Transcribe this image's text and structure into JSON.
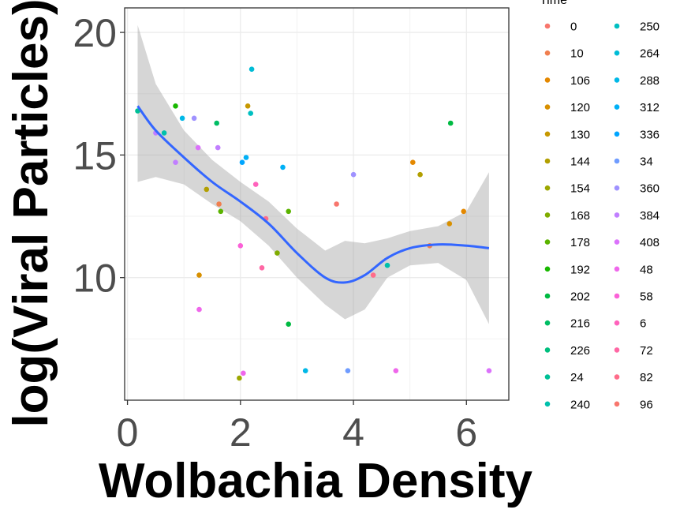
{
  "chart_data": {
    "type": "scatter",
    "xlabel": "Wolbachia Density",
    "ylabel": "log(Viral Particles)",
    "xlim": [
      -0.05,
      6.75
    ],
    "ylim": [
      5.0,
      21.0
    ],
    "x_ticks": [
      0,
      2,
      4,
      6
    ],
    "y_ticks": [
      10,
      15,
      20
    ],
    "grid": true,
    "legend": {
      "title": "Time",
      "position": "right",
      "entries": [
        {
          "label": "0",
          "color": "#F8766D"
        },
        {
          "label": "10",
          "color": "#F07F4F"
        },
        {
          "label": "106",
          "color": "#E48800"
        },
        {
          "label": "120",
          "color": "#D89000"
        },
        {
          "label": "130",
          "color": "#C79800"
        },
        {
          "label": "144",
          "color": "#B29F00"
        },
        {
          "label": "154",
          "color": "#9CA700"
        },
        {
          "label": "168",
          "color": "#80AC00"
        },
        {
          "label": "178",
          "color": "#5BB300"
        },
        {
          "label": "192",
          "color": "#18B800"
        },
        {
          "label": "202",
          "color": "#00BA42"
        },
        {
          "label": "216",
          "color": "#00BD64"
        },
        {
          "label": "226",
          "color": "#00BF7E"
        },
        {
          "label": "24",
          "color": "#00C096"
        },
        {
          "label": "240",
          "color": "#00C0AC"
        },
        {
          "label": "250",
          "color": "#00BFC1"
        },
        {
          "label": "264",
          "color": "#00BCD6"
        },
        {
          "label": "288",
          "color": "#00B8E7"
        },
        {
          "label": "312",
          "color": "#00B0F6"
        },
        {
          "label": "336",
          "color": "#00A5FF"
        },
        {
          "label": "34",
          "color": "#6F9CFF"
        },
        {
          "label": "360",
          "color": "#9F92FF"
        },
        {
          "label": "384",
          "color": "#C17FFF"
        },
        {
          "label": "408",
          "color": "#DB72FB"
        },
        {
          "label": "48",
          "color": "#EF67EB"
        },
        {
          "label": "58",
          "color": "#FB61D7"
        },
        {
          "label": "6",
          "color": "#FF62BC"
        },
        {
          "label": "72",
          "color": "#FF67A4"
        },
        {
          "label": "82",
          "color": "#FF6C8A"
        },
        {
          "label": "96",
          "color": "#F8766D"
        }
      ]
    },
    "points": [
      {
        "x": 0.18,
        "y": 16.8,
        "color": "#00C096"
      },
      {
        "x": 0.5,
        "y": 15.9,
        "color": "#C17FFF"
      },
      {
        "x": 0.65,
        "y": 15.9,
        "color": "#00C0AC"
      },
      {
        "x": 0.85,
        "y": 17.0,
        "color": "#18B800"
      },
      {
        "x": 0.85,
        "y": 14.7,
        "color": "#C17FFF"
      },
      {
        "x": 0.97,
        "y": 16.5,
        "color": "#00B8E7"
      },
      {
        "x": 1.18,
        "y": 16.5,
        "color": "#9F92FF"
      },
      {
        "x": 1.25,
        "y": 15.3,
        "color": "#DB72FB"
      },
      {
        "x": 1.27,
        "y": 10.1,
        "color": "#D89000"
      },
      {
        "x": 1.27,
        "y": 8.7,
        "color": "#EF67EB"
      },
      {
        "x": 1.4,
        "y": 13.6,
        "color": "#B29F00"
      },
      {
        "x": 1.58,
        "y": 16.3,
        "color": "#00BD64"
      },
      {
        "x": 1.6,
        "y": 15.3,
        "color": "#C17FFF"
      },
      {
        "x": 1.62,
        "y": 13.0,
        "color": "#F07F4F"
      },
      {
        "x": 1.65,
        "y": 12.7,
        "color": "#5BB300"
      },
      {
        "x": 1.98,
        "y": 5.9,
        "color": "#9CA700"
      },
      {
        "x": 2.0,
        "y": 11.3,
        "color": "#FB61D7"
      },
      {
        "x": 2.03,
        "y": 14.7,
        "color": "#00A5FF"
      },
      {
        "x": 2.05,
        "y": 6.1,
        "color": "#EF67EB"
      },
      {
        "x": 2.1,
        "y": 14.9,
        "color": "#00B0F6"
      },
      {
        "x": 2.13,
        "y": 17.0,
        "color": "#C79800"
      },
      {
        "x": 2.18,
        "y": 16.7,
        "color": "#00BFC1"
      },
      {
        "x": 2.2,
        "y": 18.5,
        "color": "#00BCD6"
      },
      {
        "x": 2.27,
        "y": 13.8,
        "color": "#FF62BC"
      },
      {
        "x": 2.38,
        "y": 10.4,
        "color": "#FF67A4"
      },
      {
        "x": 2.45,
        "y": 12.4,
        "color": "#FF6C8A"
      },
      {
        "x": 2.65,
        "y": 11.0,
        "color": "#80AC00"
      },
      {
        "x": 2.75,
        "y": 14.5,
        "color": "#00B0F6"
      },
      {
        "x": 2.85,
        "y": 12.7,
        "color": "#5BB300"
      },
      {
        "x": 2.85,
        "y": 8.1,
        "color": "#00BA42"
      },
      {
        "x": 3.15,
        "y": 6.2,
        "color": "#00B8E7"
      },
      {
        "x": 3.7,
        "y": 13.0,
        "color": "#F8766D"
      },
      {
        "x": 3.9,
        "y": 6.2,
        "color": "#6F9CFF"
      },
      {
        "x": 4.0,
        "y": 14.2,
        "color": "#9F92FF"
      },
      {
        "x": 4.35,
        "y": 10.1,
        "color": "#FF6C8A"
      },
      {
        "x": 4.6,
        "y": 10.5,
        "color": "#00C0AC"
      },
      {
        "x": 4.75,
        "y": 6.2,
        "color": "#EF67EB"
      },
      {
        "x": 5.05,
        "y": 14.7,
        "color": "#E48800"
      },
      {
        "x": 5.18,
        "y": 14.2,
        "color": "#B29F00"
      },
      {
        "x": 5.35,
        "y": 11.3,
        "color": "#F07F4F"
      },
      {
        "x": 5.7,
        "y": 12.2,
        "color": "#D89000"
      },
      {
        "x": 5.72,
        "y": 16.3,
        "color": "#00BA42"
      },
      {
        "x": 5.95,
        "y": 12.7,
        "color": "#E48800"
      },
      {
        "x": 6.4,
        "y": 6.2,
        "color": "#DB72FB"
      }
    ],
    "smooth": {
      "color": "#3366FF",
      "x": [
        0.18,
        0.5,
        1.0,
        1.5,
        2.0,
        2.5,
        3.0,
        3.5,
        3.85,
        4.2,
        4.6,
        5.0,
        5.5,
        6.0,
        6.4
      ],
      "y": [
        17.0,
        16.0,
        14.9,
        13.9,
        13.1,
        12.2,
        11.0,
        10.0,
        9.8,
        10.1,
        10.8,
        11.2,
        11.35,
        11.3,
        11.2
      ],
      "lower": [
        13.9,
        14.1,
        13.8,
        13.0,
        12.3,
        11.3,
        10.0,
        8.9,
        8.3,
        8.7,
        10.0,
        10.5,
        10.6,
        9.9,
        8.1
      ],
      "upper": [
        20.3,
        17.9,
        16.0,
        14.8,
        13.9,
        13.1,
        12.0,
        11.1,
        11.5,
        11.4,
        11.6,
        11.9,
        12.1,
        12.7,
        14.3
      ]
    }
  }
}
